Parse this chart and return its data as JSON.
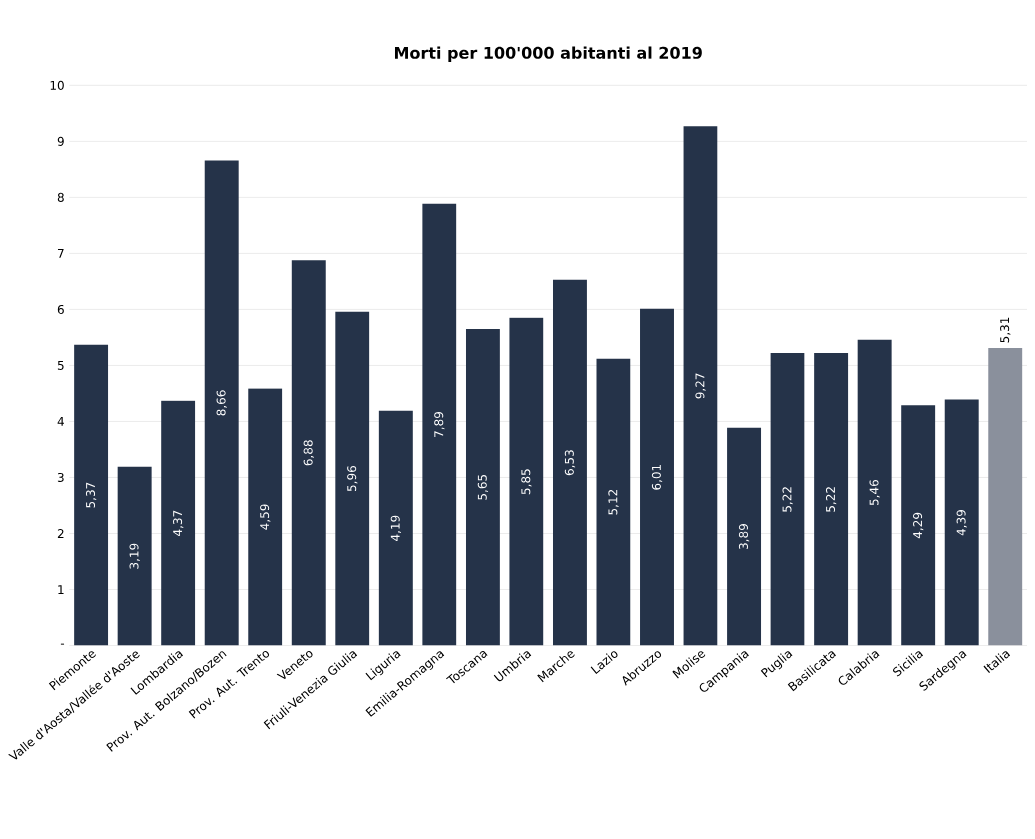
{
  "chart_data": {
    "type": "bar",
    "title": "Morti per 100'000 abitanti al 2019",
    "categories": [
      "Piemonte",
      "Valle d'Aosta/Vallée d'Aoste",
      "Lombardia",
      "Prov. Aut. Bolzano/Bozen",
      "Prov. Aut. Trento",
      "Veneto",
      "Friuli-Venezia Giulia",
      "Liguria",
      "Emilia-Romagna",
      "Toscana",
      "Umbria",
      "Marche",
      "Lazio",
      "Abruzzo",
      "Molise",
      "Campania",
      "Puglia",
      "Basilicata",
      "Calabria",
      "Sicilia",
      "Sardegna",
      "Italia"
    ],
    "values": [
      5.37,
      3.19,
      4.37,
      8.66,
      4.59,
      6.88,
      5.96,
      4.19,
      7.89,
      5.65,
      5.85,
      6.53,
      5.12,
      6.01,
      9.27,
      3.89,
      5.22,
      5.22,
      5.46,
      4.29,
      4.39,
      5.31
    ],
    "value_labels": [
      "5,37",
      "3,19",
      "4,37",
      "8,66",
      "4,59",
      "6,88",
      "5,96",
      "4,19",
      "7,89",
      "5,65",
      "5,85",
      "6,53",
      "5,12",
      "6,01",
      "9,27",
      "3,89",
      "5,22",
      "5,22",
      "5,46",
      "4,29",
      "4,39",
      "5,31"
    ],
    "colors": [
      "#253349",
      "#253349",
      "#253349",
      "#253349",
      "#253349",
      "#253349",
      "#253349",
      "#253349",
      "#253349",
      "#253349",
      "#253349",
      "#253349",
      "#253349",
      "#253349",
      "#253349",
      "#253349",
      "#253349",
      "#253349",
      "#253349",
      "#253349",
      "#253349",
      "#8a909c"
    ],
    "ylim": [
      0,
      10
    ],
    "yticks": [
      {
        "value": 0,
        "label": "-"
      },
      1,
      2,
      3,
      4,
      5,
      6,
      7,
      8,
      9,
      10
    ],
    "grid": "y"
  }
}
